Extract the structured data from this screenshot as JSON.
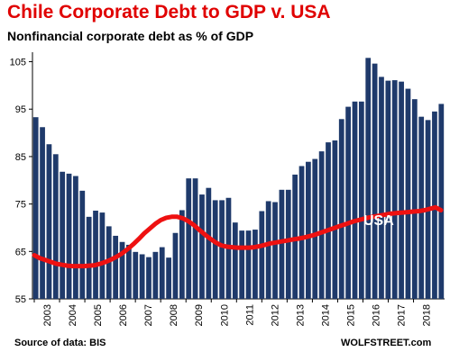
{
  "chart_data": {
    "type": "bar",
    "title": "Chile Corporate Debt to GDP v. USA",
    "subtitle": "Nonfinancial corporate debt as % of GDP",
    "source": "Source of data: BIS",
    "brand": "WOLFSTREET.com",
    "ylim": [
      55,
      107
    ],
    "yticks": [
      55,
      65,
      75,
      85,
      95,
      105
    ],
    "grid": false,
    "year_labels": [
      "2003",
      "2004",
      "2005",
      "2006",
      "2007",
      "2008",
      "2009",
      "2010",
      "2011",
      "2012",
      "2013",
      "2014",
      "2015",
      "2016",
      "2017",
      "2018"
    ],
    "series": [
      {
        "name": "Chile",
        "kind": "bar",
        "color": "#1f3a6b",
        "values": [
          93.3,
          91.2,
          87.6,
          85.5,
          81.8,
          81.4,
          80.9,
          77.8,
          72.3,
          73.6,
          73.2,
          70.3,
          68.3,
          67.0,
          66.4,
          64.9,
          64.4,
          63.8,
          64.9,
          65.9,
          63.7,
          68.9,
          73.7,
          80.4,
          80.4,
          77.0,
          78.4,
          75.8,
          75.8,
          76.3,
          71.1,
          69.4,
          69.4,
          69.6,
          73.5,
          75.6,
          75.4,
          78.0,
          78.0,
          81.2,
          83.0,
          83.9,
          84.5,
          86.1,
          88.0,
          88.4,
          92.9,
          95.5,
          96.6,
          96.6,
          105.8,
          104.6,
          101.8,
          101.0,
          101.1,
          100.8,
          99.3,
          97.1,
          93.4,
          92.7,
          94.5,
          96.1
        ]
      },
      {
        "name": "USA",
        "kind": "line",
        "color": "#ee1111",
        "values": [
          64.2,
          63.6,
          63.2,
          62.8,
          62.4,
          62.2,
          62.0,
          61.9,
          61.9,
          61.9,
          62.0,
          62.1,
          62.4,
          62.8,
          63.3,
          63.9,
          64.6,
          65.5,
          66.5,
          67.6,
          68.8,
          69.8,
          70.8,
          71.6,
          72.1,
          72.3,
          72.3,
          72.0,
          71.4,
          70.6,
          69.6,
          68.6,
          67.7,
          66.9,
          66.3,
          66.0,
          65.9,
          65.8,
          65.8,
          65.8,
          65.9,
          66.1,
          66.4,
          66.7,
          66.9,
          67.1,
          67.3,
          67.5,
          67.7,
          67.9,
          68.2,
          68.5,
          68.9,
          69.3,
          69.7,
          70.1,
          70.5,
          70.9,
          71.3,
          71.6,
          71.9,
          72.2,
          72.4,
          72.6,
          72.8,
          73.0,
          73.1,
          73.2,
          73.3,
          73.4,
          73.5,
          73.7,
          74.0,
          74.3,
          73.7
        ],
        "label": "USA"
      }
    ]
  }
}
